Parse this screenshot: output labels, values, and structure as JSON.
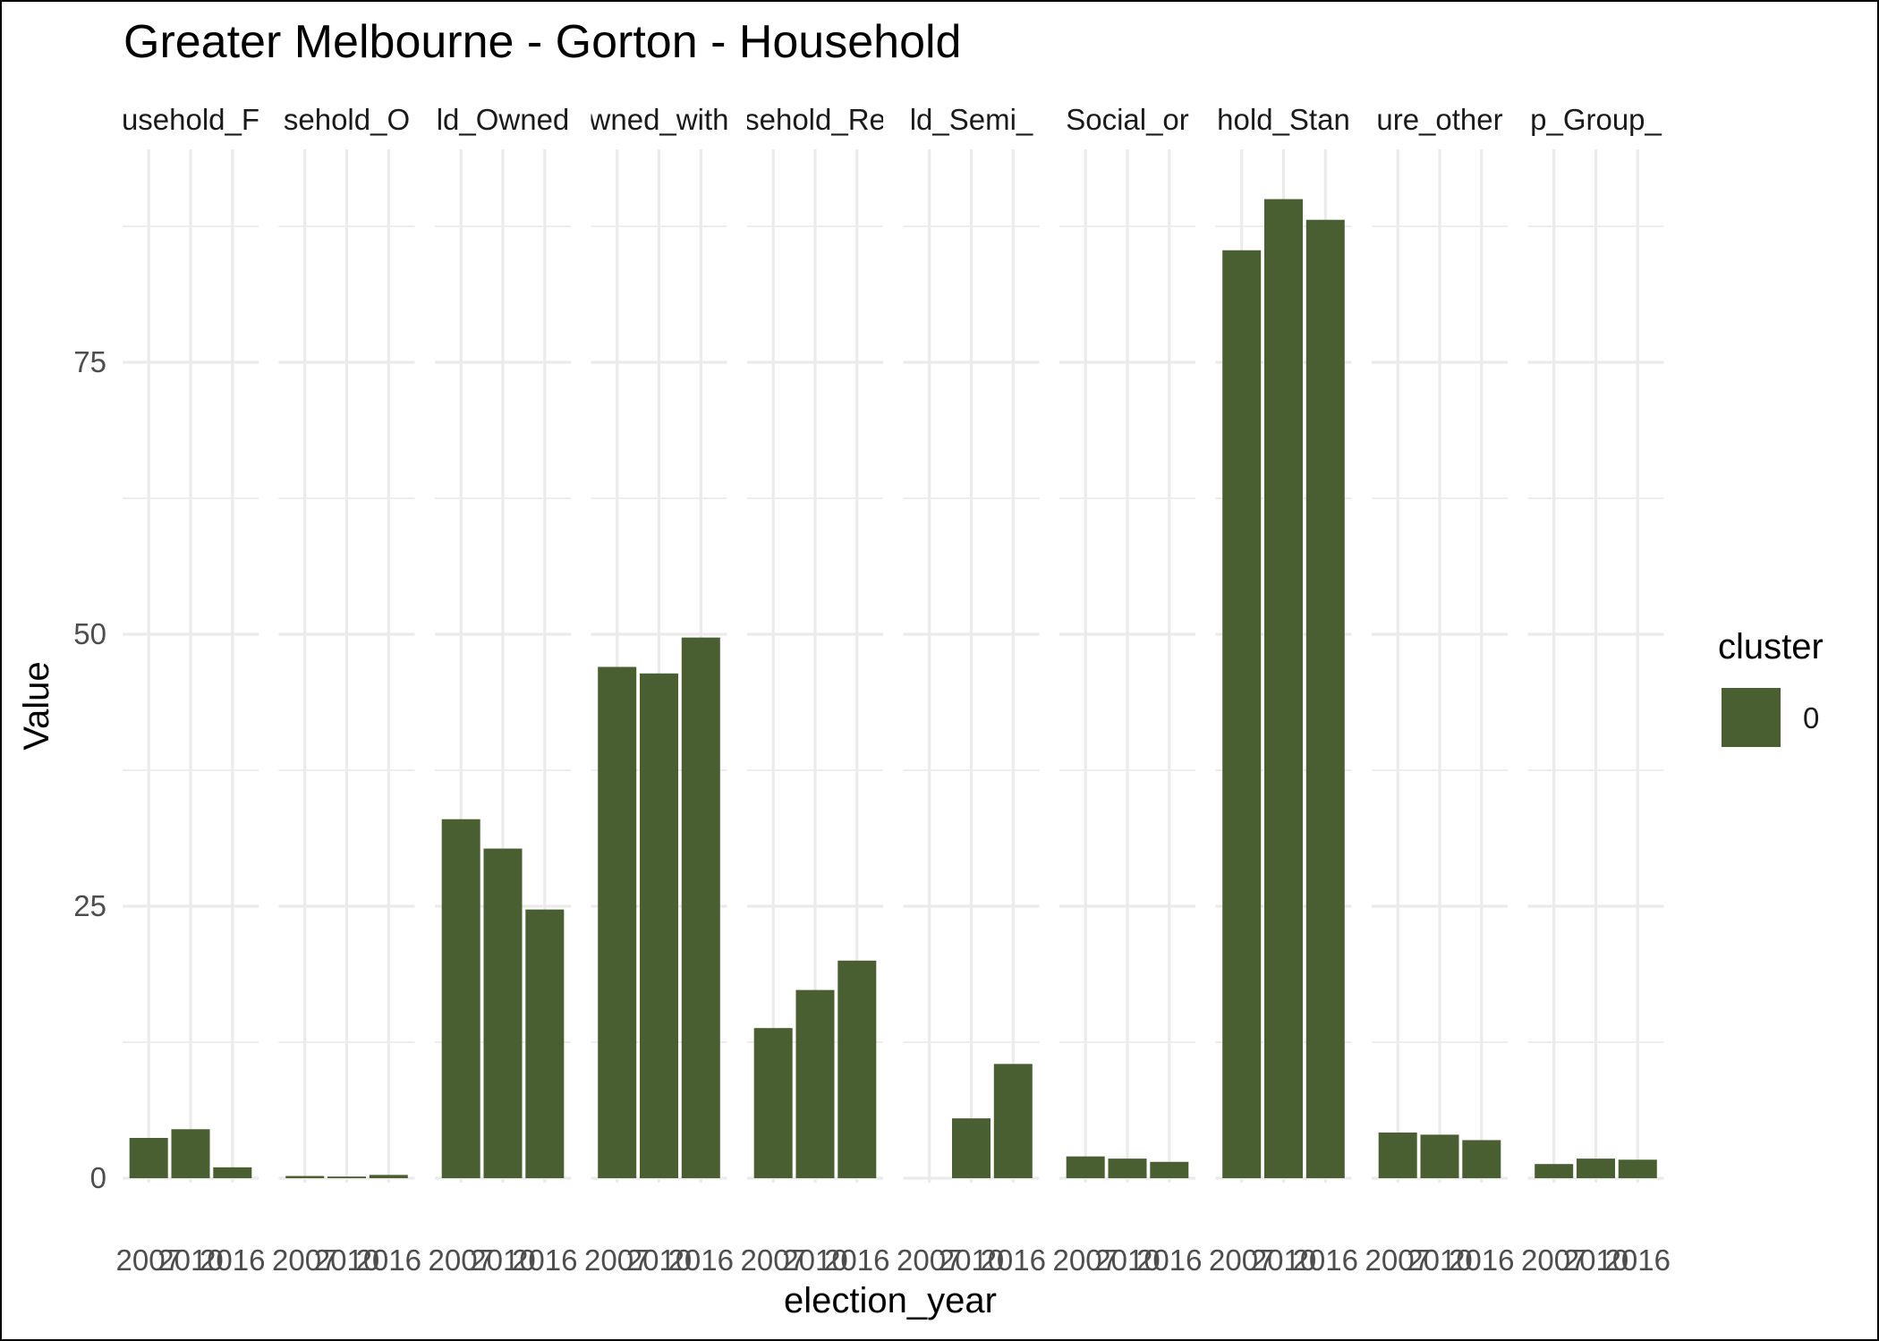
{
  "chart_data": {
    "type": "bar",
    "title": "Greater Melbourne - Gorton - Household",
    "xlabel": "election_year",
    "ylabel": "Value",
    "ylim": [
      0,
      95
    ],
    "yticks": [
      0,
      25,
      50,
      75
    ],
    "grid": true,
    "facets": [
      {
        "label": "usehold_F",
        "categories": [
          "2007",
          "2010",
          "2016"
        ],
        "values": [
          3.7,
          4.5,
          1.0
        ]
      },
      {
        "label": "sehold_O",
        "categories": [
          "2007",
          "2010",
          "2016"
        ],
        "values": [
          0.2,
          0.15,
          0.3
        ]
      },
      {
        "label": "ld_Owned",
        "categories": [
          "2007",
          "2010",
          "2016"
        ],
        "values": [
          33.0,
          30.3,
          24.7
        ]
      },
      {
        "label": "wned_with",
        "categories": [
          "2007",
          "2010",
          "2016"
        ],
        "values": [
          47.0,
          46.4,
          49.7
        ]
      },
      {
        "label": "sehold_Re",
        "categories": [
          "2007",
          "2010",
          "2016"
        ],
        "values": [
          13.8,
          17.3,
          20.0
        ]
      },
      {
        "label": "ld_Semi_",
        "categories": [
          "2007",
          "2010",
          "2016"
        ],
        "values": [
          0.0,
          5.5,
          10.5
        ]
      },
      {
        "label": "Social_or",
        "categories": [
          "2007",
          "2010",
          "2016"
        ],
        "values": [
          2.0,
          1.8,
          1.5
        ]
      },
      {
        "label": "hold_Stan",
        "categories": [
          "2007",
          "2010",
          "2016"
        ],
        "values": [
          85.3,
          90.0,
          88.1
        ]
      },
      {
        "label": "ure_other",
        "categories": [
          "2007",
          "2010",
          "2016"
        ],
        "values": [
          4.2,
          4.0,
          3.5
        ]
      },
      {
        "label": "p_Group_",
        "categories": [
          "2007",
          "2010",
          "2016"
        ],
        "values": [
          1.3,
          1.8,
          1.7
        ]
      }
    ],
    "legend": {
      "title": "cluster",
      "placement": "right",
      "entries": [
        {
          "label": "0",
          "color": "#4a5f31"
        }
      ]
    },
    "colors": {
      "bar": "#4a5f31",
      "grid": "#ebebeb"
    }
  }
}
